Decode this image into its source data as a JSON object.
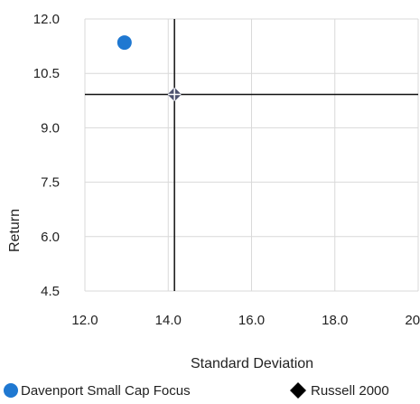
{
  "chart_data": {
    "type": "scatter",
    "title": "",
    "xlabel": "Standard Deviation",
    "ylabel": "Return",
    "xlim": [
      12.0,
      20.0
    ],
    "ylim": [
      4.5,
      12.0
    ],
    "x_ticks": [
      "12.0",
      "14.0",
      "16.0",
      "18.0",
      "20.0"
    ],
    "y_ticks": [
      "12.0",
      "10.5",
      "9.0",
      "7.5",
      "6.0",
      "4.5"
    ],
    "grid": true,
    "legend_position": "bottom",
    "series": [
      {
        "name": "Davenport Small Cap Focus",
        "marker": "circle",
        "color": "#1f78d1",
        "points": [
          {
            "x": 12.95,
            "y": 11.35
          }
        ]
      },
      {
        "name": "Russell 2000",
        "marker": "diamond",
        "color": "#000000",
        "points": [
          {
            "x": 14.15,
            "y": 9.92
          }
        ]
      }
    ],
    "crosshair": {
      "x": 14.15,
      "y": 9.92
    }
  }
}
